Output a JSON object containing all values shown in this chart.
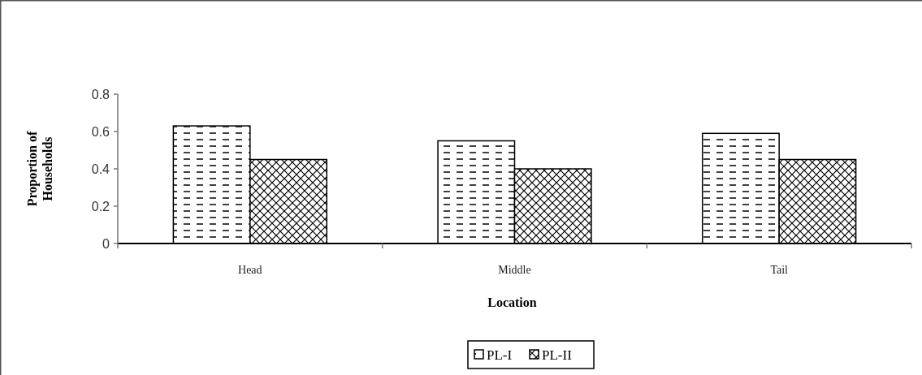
{
  "chart_data": {
    "type": "bar",
    "xlabel": "Location",
    "ylabel": "Proportion of Households",
    "categories": [
      "Head",
      "Middle",
      "Tail"
    ],
    "series": [
      {
        "name": "PL-I",
        "color": "#000000",
        "values": [
          0.63,
          0.55,
          0.59
        ]
      },
      {
        "name": "PL-II",
        "color": "#000000",
        "values": [
          0.45,
          0.4,
          0.45
        ]
      }
    ],
    "ylim": [
      0,
      0.8
    ],
    "yticks": [
      0,
      0.2,
      0.4,
      0.6,
      0.8
    ],
    "grid": false,
    "legend": "bottom"
  }
}
